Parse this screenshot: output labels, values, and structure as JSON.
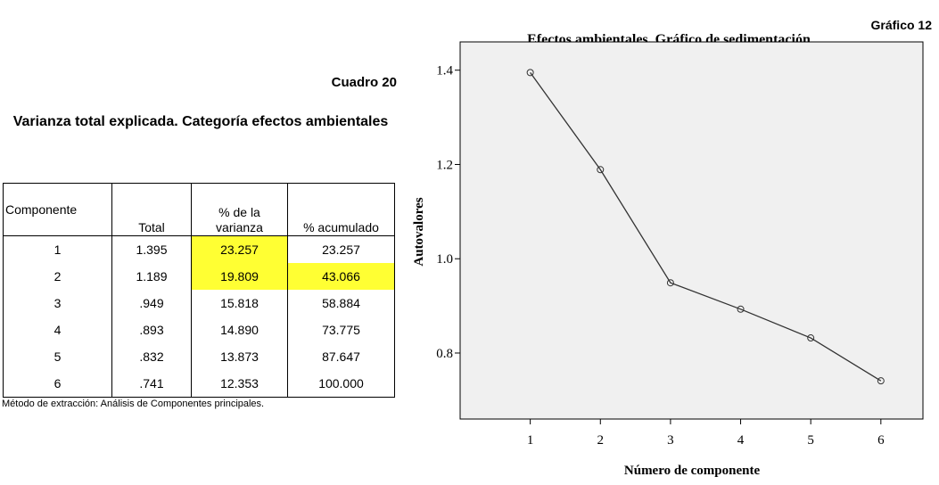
{
  "cuadro": "Cuadro 20",
  "table_title": "Varianza total explicada. Categoría efectos ambientales",
  "table": {
    "header": [
      "Componente",
      "Total",
      "% de la varianza",
      "% acumulado"
    ],
    "rows": [
      [
        "1",
        "1.395",
        "23.257",
        "23.257"
      ],
      [
        "2",
        "1.189",
        "19.809",
        "43.066"
      ],
      [
        "3",
        ".949",
        "15.818",
        "58.884"
      ],
      [
        "4",
        ".893",
        "14.890",
        "73.775"
      ],
      [
        "5",
        ".832",
        "13.873",
        "87.647"
      ],
      [
        "6",
        ".741",
        "12.353",
        "100.000"
      ]
    ],
    "highlight": [
      [
        0,
        2
      ],
      [
        1,
        2
      ],
      [
        1,
        3
      ]
    ],
    "highlight_color": "#ffff33"
  },
  "footnote": "Método de extracción: Análisis de Componentes principales.",
  "grafico": "Gráfico 12",
  "chart_data": {
    "type": "line",
    "title": "Efectos ambientales. Gráfico de sedimentación",
    "xlabel": "Número de componente",
    "ylabel": "Autovalores",
    "x": [
      1,
      2,
      3,
      4,
      5,
      6
    ],
    "values": [
      1.395,
      1.189,
      0.949,
      0.893,
      0.832,
      0.741
    ],
    "color": "#333333",
    "xlim": [
      0,
      6.6
    ],
    "xticks": [
      1,
      2,
      3,
      4,
      5,
      6
    ],
    "ylim": [
      0.66,
      1.46
    ],
    "yticks": [
      0.8,
      {
        "value": 1,
        "label": "1.0"
      },
      1.2,
      1.4
    ],
    "background": "#f0f0f0"
  }
}
